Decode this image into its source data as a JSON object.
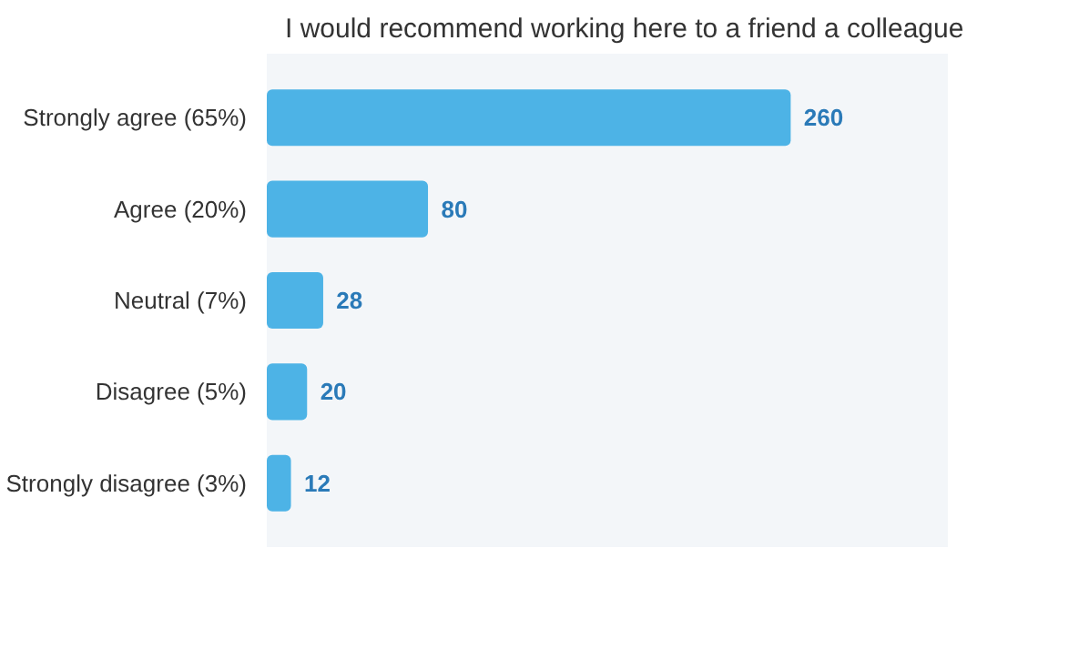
{
  "chart_data": {
    "type": "bar",
    "orientation": "horizontal",
    "title": "I would recommend working here to a friend a colleague",
    "categories": [
      "Strongly agree (65%)",
      "Agree (20%)",
      "Neutral (7%)",
      "Disagree (5%)",
      "Strongly disagree (3%)"
    ],
    "values": [
      260,
      80,
      28,
      20,
      12
    ],
    "color": "#4db3e6",
    "data_labels": true
  }
}
